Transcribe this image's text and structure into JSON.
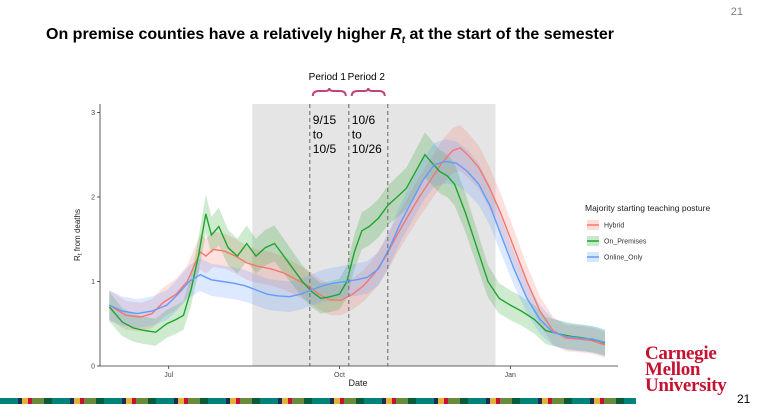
{
  "slide": {
    "page_number": "21",
    "title_before": "On premise counties have a relatively higher ",
    "title_symbol": "R",
    "title_subscript": "t",
    "title_after": " at the start of the semester",
    "logo_line1": "Carnegie",
    "logo_line2": "Mellon",
    "logo_line3": "University",
    "logo_page": "21"
  },
  "annotations": {
    "period1_label": "Period 1",
    "period2_label": "Period 2",
    "period1_range": [
      "9/15",
      "to",
      "10/5"
    ],
    "period2_range": [
      "10/6",
      "to",
      "10/26"
    ]
  },
  "colors": {
    "hybrid": "#f8766d",
    "on_premises": "#1fa52b",
    "online_only": "#619cff",
    "shade": "#e5e5e5",
    "brace": "#c0427e",
    "cmu_red": "#c41230"
  },
  "chart_data": {
    "type": "line",
    "title": "",
    "xlabel": "Date",
    "ylabel_main": "R",
    "ylabel_sub": "t",
    "ylabel_rest": " from deaths",
    "xlim": [
      "2020-05-25",
      "2021-02-28"
    ],
    "ylim": [
      0,
      3.1
    ],
    "x_ticks": [
      {
        "date": "2020-07-01",
        "label": "Jul"
      },
      {
        "date": "2020-10-01",
        "label": "Oct"
      },
      {
        "date": "2021-01-01",
        "label": "Jan"
      }
    ],
    "y_ticks": [
      0,
      1,
      2,
      3
    ],
    "shaded_region": [
      "2020-08-15",
      "2020-12-24"
    ],
    "vlines": [
      "2020-09-15",
      "2020-10-06",
      "2020-10-27"
    ],
    "legend_title": "Majority starting teaching posture",
    "legend_position": "right",
    "series": [
      {
        "name": "Hybrid",
        "color_key": "hybrid",
        "points": [
          [
            "2020-05-30",
            0.72
          ],
          [
            "2020-06-08",
            0.6
          ],
          [
            "2020-06-16",
            0.58
          ],
          [
            "2020-06-22",
            0.62
          ],
          [
            "2020-06-28",
            0.75
          ],
          [
            "2020-07-05",
            0.85
          ],
          [
            "2020-07-11",
            1.0
          ],
          [
            "2020-07-15",
            1.2
          ],
          [
            "2020-07-18",
            1.35
          ],
          [
            "2020-07-21",
            1.3
          ],
          [
            "2020-07-25",
            1.38
          ],
          [
            "2020-07-31",
            1.36
          ],
          [
            "2020-08-06",
            1.3
          ],
          [
            "2020-08-12",
            1.22
          ],
          [
            "2020-08-18",
            1.18
          ],
          [
            "2020-08-25",
            1.15
          ],
          [
            "2020-09-01",
            1.1
          ],
          [
            "2020-09-08",
            1.02
          ],
          [
            "2020-09-14",
            0.95
          ],
          [
            "2020-09-20",
            0.85
          ],
          [
            "2020-09-26",
            0.78
          ],
          [
            "2020-10-02",
            0.78
          ],
          [
            "2020-10-08",
            0.85
          ],
          [
            "2020-10-14",
            0.95
          ],
          [
            "2020-10-20",
            1.1
          ],
          [
            "2020-10-26",
            1.3
          ],
          [
            "2020-11-01",
            1.55
          ],
          [
            "2020-11-07",
            1.78
          ],
          [
            "2020-11-13",
            2.0
          ],
          [
            "2020-11-19",
            2.2
          ],
          [
            "2020-11-25",
            2.4
          ],
          [
            "2020-12-01",
            2.55
          ],
          [
            "2020-12-05",
            2.58
          ],
          [
            "2020-12-09",
            2.5
          ],
          [
            "2020-12-15",
            2.35
          ],
          [
            "2020-12-21",
            2.1
          ],
          [
            "2020-12-27",
            1.8
          ],
          [
            "2021-01-03",
            1.4
          ],
          [
            "2021-01-10",
            1.0
          ],
          [
            "2021-01-17",
            0.65
          ],
          [
            "2021-01-24",
            0.42
          ],
          [
            "2021-01-31",
            0.33
          ],
          [
            "2021-02-07",
            0.32
          ],
          [
            "2021-02-14",
            0.3
          ],
          [
            "2021-02-21",
            0.25
          ]
        ]
      },
      {
        "name": "On_Premises",
        "color_key": "on_premises",
        "points": [
          [
            "2020-05-30",
            0.7
          ],
          [
            "2020-06-06",
            0.52
          ],
          [
            "2020-06-12",
            0.45
          ],
          [
            "2020-06-18",
            0.42
          ],
          [
            "2020-06-24",
            0.4
          ],
          [
            "2020-06-30",
            0.5
          ],
          [
            "2020-07-05",
            0.55
          ],
          [
            "2020-07-09",
            0.6
          ],
          [
            "2020-07-13",
            0.9
          ],
          [
            "2020-07-17",
            1.3
          ],
          [
            "2020-07-21",
            1.8
          ],
          [
            "2020-07-24",
            1.55
          ],
          [
            "2020-07-28",
            1.65
          ],
          [
            "2020-08-02",
            1.4
          ],
          [
            "2020-08-07",
            1.3
          ],
          [
            "2020-08-12",
            1.45
          ],
          [
            "2020-08-17",
            1.3
          ],
          [
            "2020-08-22",
            1.4
          ],
          [
            "2020-08-27",
            1.45
          ],
          [
            "2020-09-01",
            1.3
          ],
          [
            "2020-09-06",
            1.15
          ],
          [
            "2020-09-11",
            1.0
          ],
          [
            "2020-09-16",
            0.88
          ],
          [
            "2020-09-21",
            0.8
          ],
          [
            "2020-09-26",
            0.82
          ],
          [
            "2020-10-01",
            0.85
          ],
          [
            "2020-10-05",
            1.0
          ],
          [
            "2020-10-09",
            1.35
          ],
          [
            "2020-10-13",
            1.6
          ],
          [
            "2020-10-17",
            1.65
          ],
          [
            "2020-10-22",
            1.75
          ],
          [
            "2020-10-27",
            1.9
          ],
          [
            "2020-11-01",
            2.0
          ],
          [
            "2020-11-06",
            2.1
          ],
          [
            "2020-11-11",
            2.3
          ],
          [
            "2020-11-16",
            2.5
          ],
          [
            "2020-11-20",
            2.4
          ],
          [
            "2020-11-24",
            2.3
          ],
          [
            "2020-11-28",
            2.25
          ],
          [
            "2020-12-02",
            2.15
          ],
          [
            "2020-12-08",
            1.8
          ],
          [
            "2020-12-14",
            1.4
          ],
          [
            "2020-12-20",
            1.0
          ],
          [
            "2020-12-26",
            0.8
          ],
          [
            "2021-01-01",
            0.72
          ],
          [
            "2021-01-07",
            0.65
          ],
          [
            "2021-01-14",
            0.55
          ],
          [
            "2021-01-20",
            0.42
          ],
          [
            "2021-01-27",
            0.38
          ],
          [
            "2021-02-03",
            0.35
          ],
          [
            "2021-02-10",
            0.33
          ],
          [
            "2021-02-17",
            0.3
          ],
          [
            "2021-02-21",
            0.27
          ]
        ]
      },
      {
        "name": "Online_Only",
        "color_key": "online_only",
        "points": [
          [
            "2020-05-30",
            0.72
          ],
          [
            "2020-06-06",
            0.65
          ],
          [
            "2020-06-14",
            0.62
          ],
          [
            "2020-06-22",
            0.65
          ],
          [
            "2020-06-30",
            0.72
          ],
          [
            "2020-07-06",
            0.85
          ],
          [
            "2020-07-12",
            1.0
          ],
          [
            "2020-07-18",
            1.08
          ],
          [
            "2020-07-24",
            1.02
          ],
          [
            "2020-07-30",
            1.0
          ],
          [
            "2020-08-05",
            0.98
          ],
          [
            "2020-08-11",
            0.95
          ],
          [
            "2020-08-17",
            0.9
          ],
          [
            "2020-08-23",
            0.85
          ],
          [
            "2020-08-29",
            0.83
          ],
          [
            "2020-09-04",
            0.82
          ],
          [
            "2020-09-10",
            0.85
          ],
          [
            "2020-09-16",
            0.9
          ],
          [
            "2020-09-22",
            0.95
          ],
          [
            "2020-09-28",
            0.98
          ],
          [
            "2020-10-04",
            1.0
          ],
          [
            "2020-10-10",
            1.02
          ],
          [
            "2020-10-16",
            1.05
          ],
          [
            "2020-10-22",
            1.15
          ],
          [
            "2020-10-28",
            1.4
          ],
          [
            "2020-11-03",
            1.7
          ],
          [
            "2020-11-09",
            1.95
          ],
          [
            "2020-11-15",
            2.2
          ],
          [
            "2020-11-21",
            2.38
          ],
          [
            "2020-11-27",
            2.42
          ],
          [
            "2020-12-03",
            2.4
          ],
          [
            "2020-12-09",
            2.3
          ],
          [
            "2020-12-15",
            2.15
          ],
          [
            "2020-12-21",
            1.9
          ],
          [
            "2020-12-27",
            1.55
          ],
          [
            "2021-01-03",
            1.15
          ],
          [
            "2021-01-10",
            0.8
          ],
          [
            "2021-01-17",
            0.55
          ],
          [
            "2021-01-24",
            0.4
          ],
          [
            "2021-01-31",
            0.35
          ],
          [
            "2021-02-07",
            0.33
          ],
          [
            "2021-02-14",
            0.32
          ],
          [
            "2021-02-21",
            0.28
          ]
        ]
      }
    ]
  }
}
